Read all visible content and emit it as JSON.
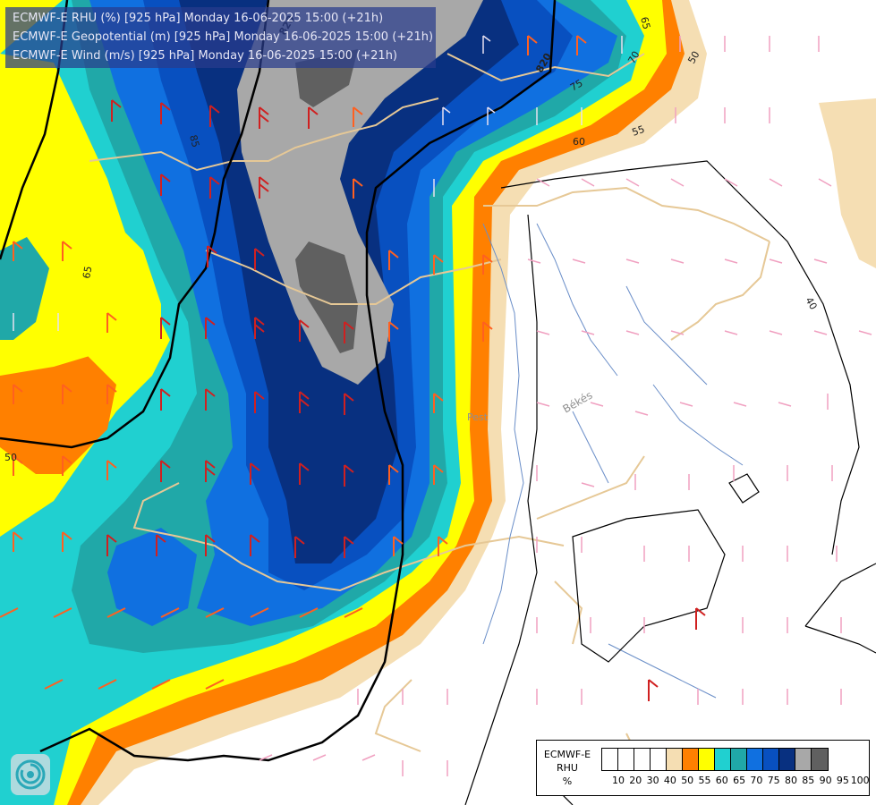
{
  "title_lines": [
    "ECMWF-E RHU (%) [925 hPa] Monday 16-06-2025 15:00 (+21h)",
    "ECMWF-E Geopotential (m) [925 hPa] Monday 16-06-2025 15:00 (+21h)",
    "ECMWF-E Wind (m/s) [925 hPa] Monday 16-06-2025 15:00 (+21h)"
  ],
  "legend": {
    "model": "ECMWF-E",
    "variable": "RHU",
    "unit": "%",
    "ticks": [
      "10",
      "20",
      "30",
      "40",
      "50",
      "55",
      "60",
      "65",
      "70",
      "75",
      "80",
      "85",
      "90",
      "95",
      "100"
    ],
    "colors": [
      "#ffffff",
      "#ffffff",
      "#ffffff",
      "#ffffff",
      "#f5deb3",
      "#ff8000",
      "#ffff00",
      "#20d0d0",
      "#20a8a8",
      "#1070e0",
      "#0850c0",
      "#083080",
      "#a8a8a8",
      "#606060"
    ]
  },
  "map_labels": {
    "contour_labels": [
      "85",
      "65",
      "60",
      "55",
      "50",
      "40",
      "65",
      "75",
      "70",
      "50"
    ],
    "geopotential_labels": [
      "820",
      "820"
    ],
    "place_labels": [
      "Békés",
      "Pest"
    ]
  },
  "icons": {
    "logo": "ecmwf-swirl-logo"
  }
}
